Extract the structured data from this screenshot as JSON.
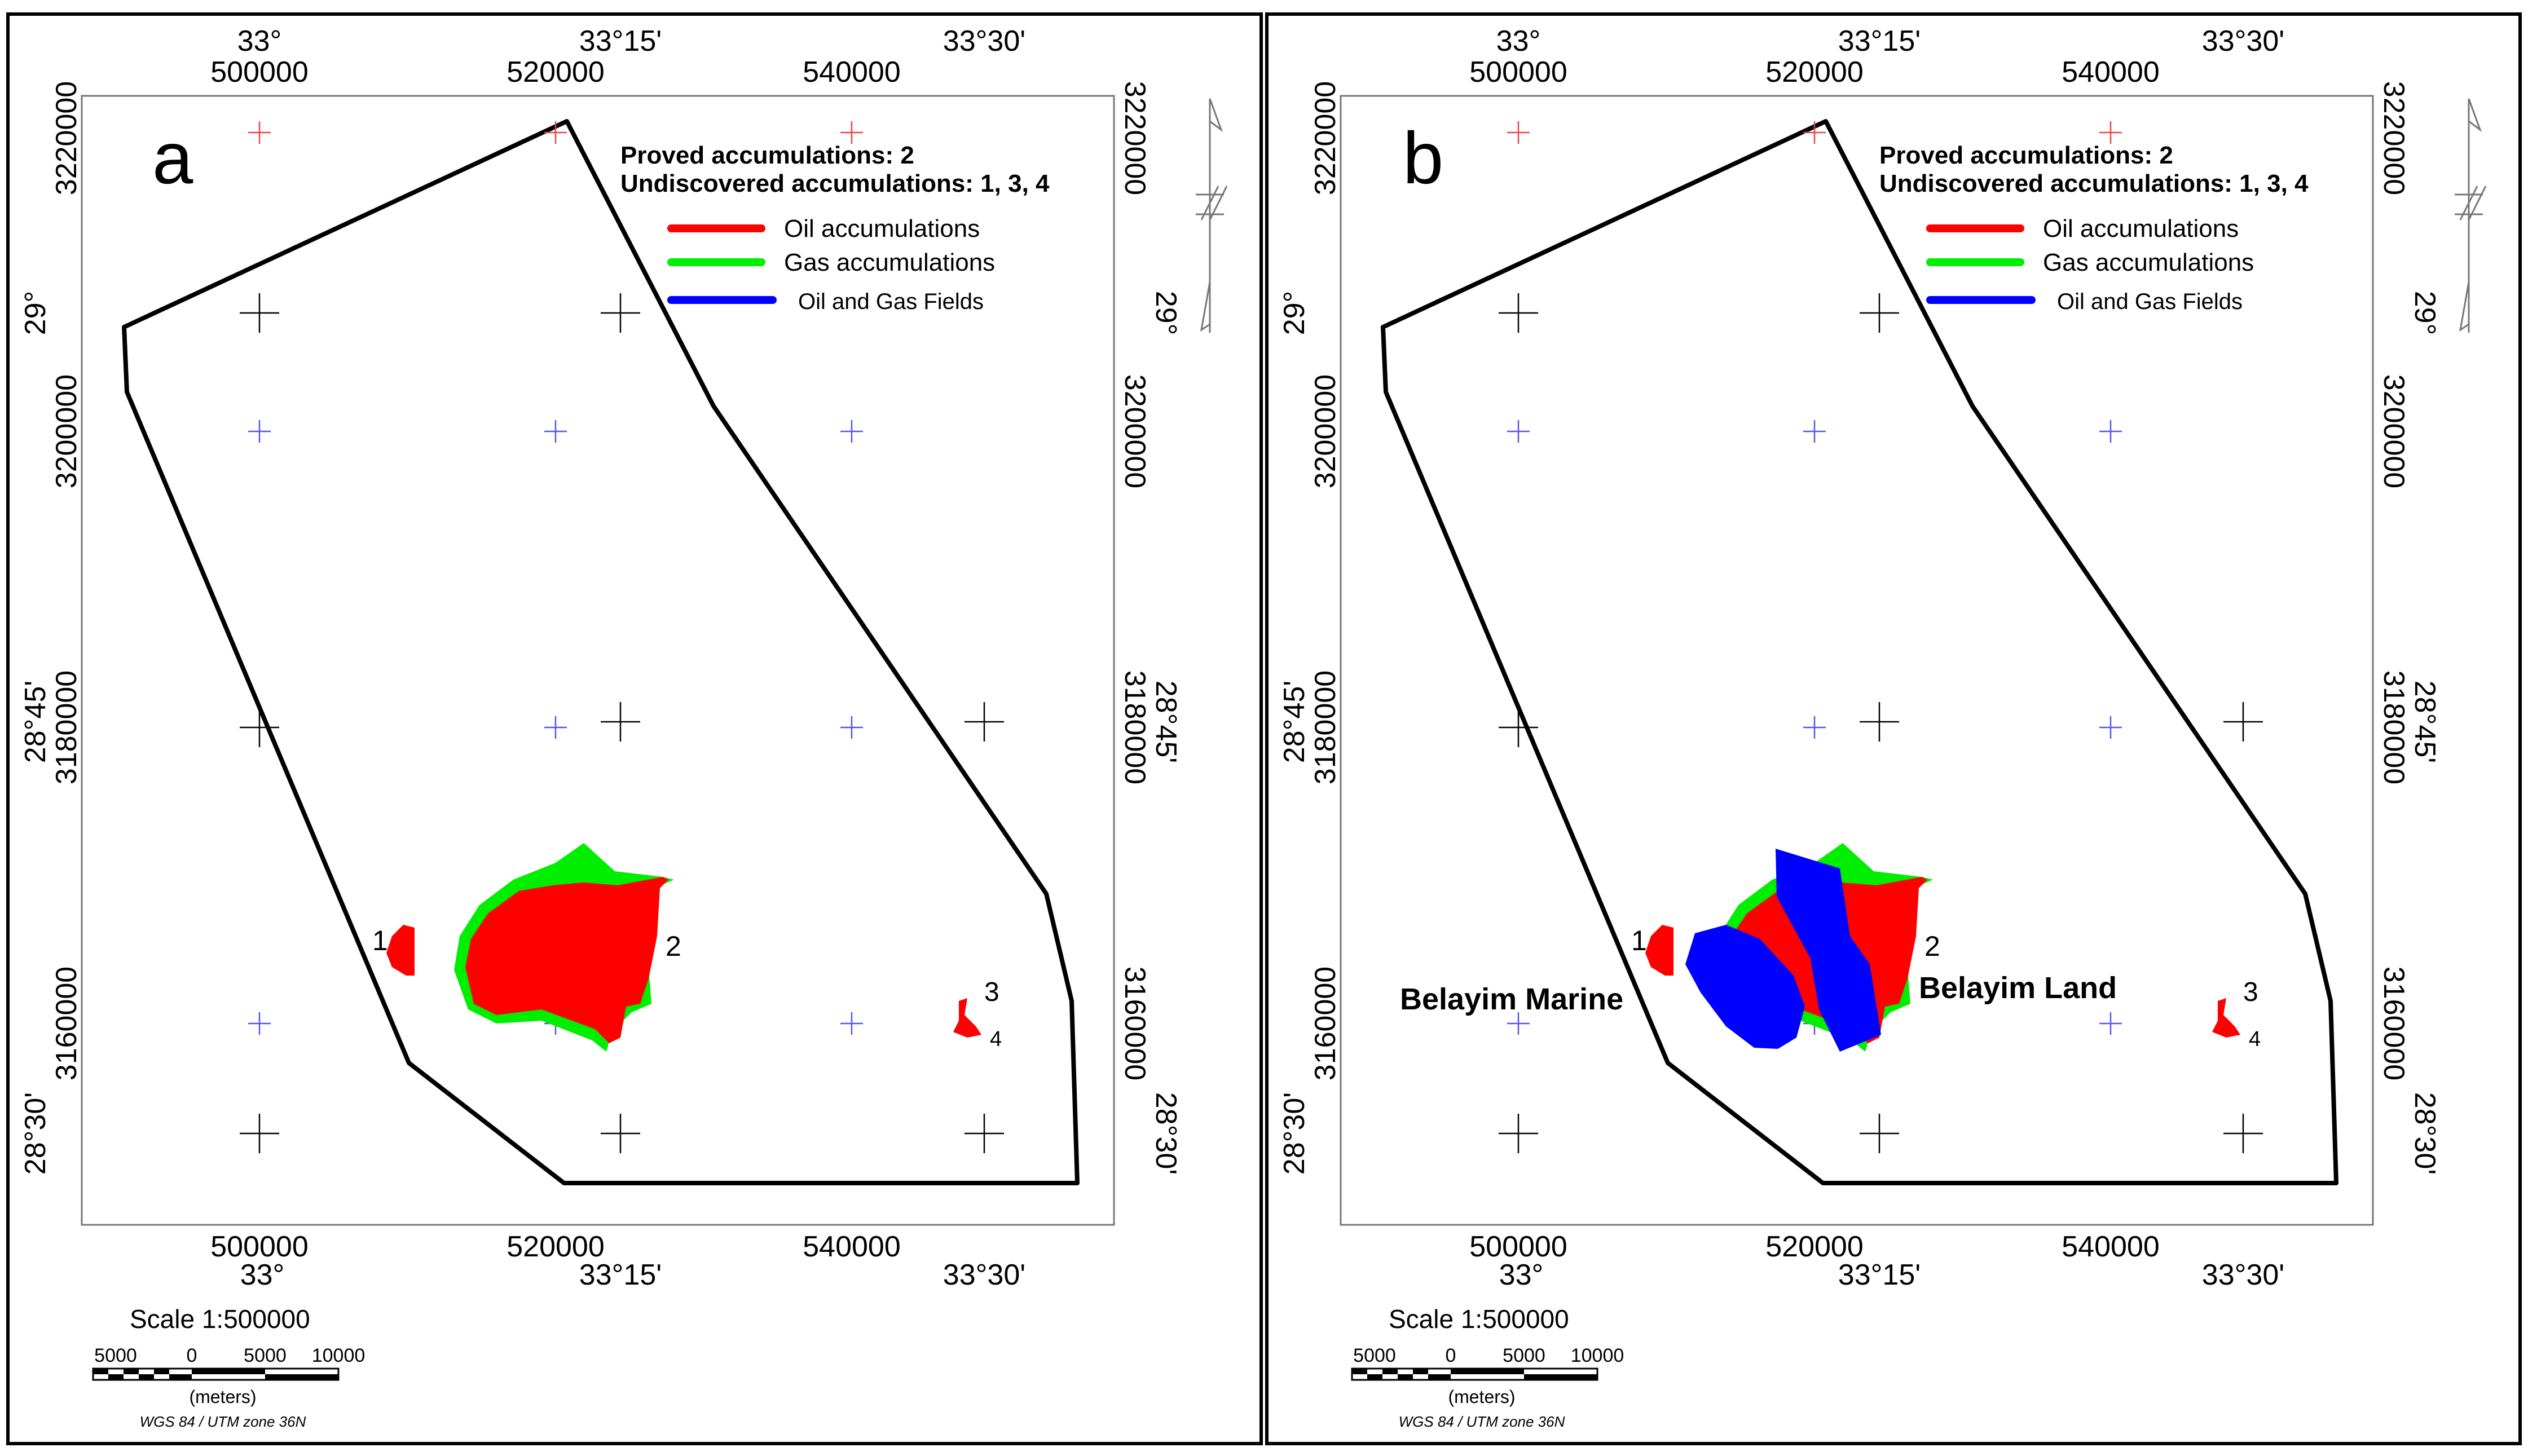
{
  "panels": [
    {
      "id": "a",
      "letter": "a",
      "legend": {
        "proved": "Proved accumulations: 2",
        "undiscovered": "Undiscovered accumulations: 1, 3, 4",
        "oil": "Oil accumulations",
        "gas": "Gas accumulations",
        "fields": "Oil and Gas Fields"
      },
      "field_labels": [],
      "accumulation_labels": [
        "1",
        "2",
        "3",
        "4"
      ]
    },
    {
      "id": "b",
      "letter": "b",
      "legend": {
        "proved": "Proved accumulations: 2",
        "undiscovered": "Undiscovered accumulations: 1, 3, 4",
        "oil": "Oil accumulations",
        "gas": "Gas accumulations",
        "fields": "Oil and Gas Fields"
      },
      "field_labels": [
        "Belayim Marine",
        "Belayim Land"
      ],
      "accumulation_labels": [
        "1",
        "2",
        "3",
        "4"
      ]
    }
  ],
  "axes": {
    "utm_easting": [
      "500000",
      "520000",
      "540000"
    ],
    "utm_northing": [
      "3220000",
      "3200000",
      "3180000",
      "3160000"
    ],
    "longitude": [
      "33°",
      "33°15'",
      "33°30'"
    ],
    "latitude": [
      "29°",
      "28°45'",
      "28°30'"
    ]
  },
  "scale": {
    "title": "Scale 1:500000",
    "ticks": [
      "5000",
      "0",
      "5000",
      "10000"
    ],
    "units": "(meters)",
    "projection": "WGS 84 / UTM zone 36N"
  },
  "colors": {
    "oil": "#ff0000",
    "gas": "#00ee00",
    "fields": "#0000ff",
    "utm_cross": "#5555ee",
    "red_cross": "#ee4444",
    "boundary": "#000000"
  },
  "icons": [
    "north-arrow-icon"
  ]
}
